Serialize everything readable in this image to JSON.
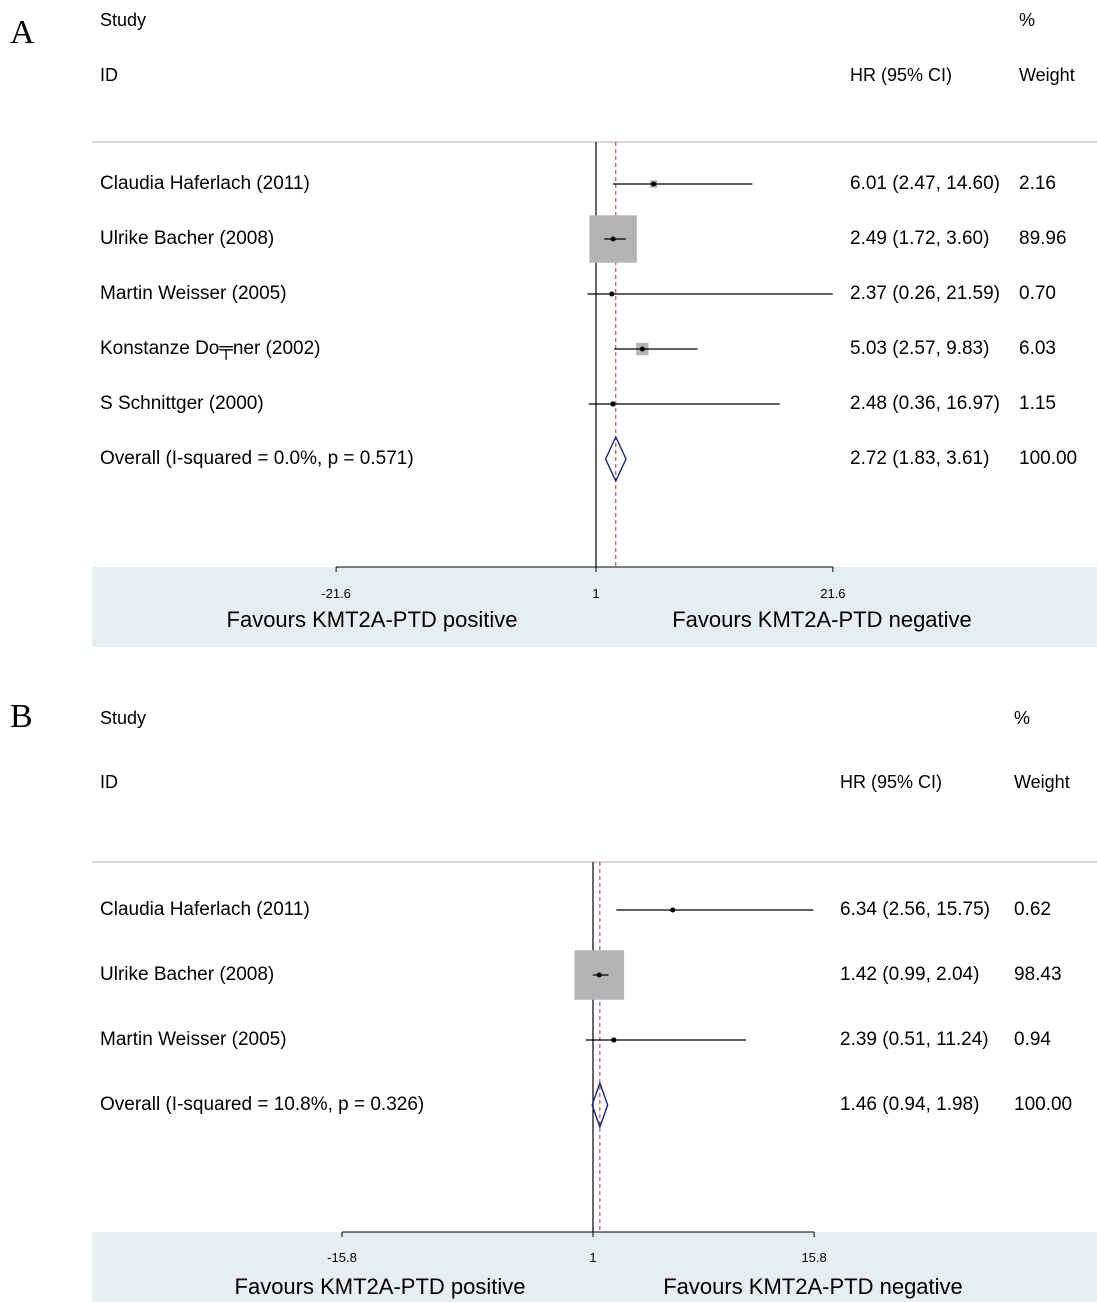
{
  "chart_data": [
    {
      "type": "forest",
      "panel": "A",
      "title": "",
      "col_study": "Study",
      "col_id": "ID",
      "col_effect": "HR (95% CI)",
      "col_pct": "%",
      "col_weight": "Weight",
      "ticks": [
        -21.6,
        1,
        21.6
      ],
      "tick_labels": [
        "-21.6",
        "1",
        "21.6"
      ],
      "null_value": 1,
      "overall_value": 2.72,
      "favours_left": "Favours KMT2A-PTD positive",
      "favours_right": "Favours KMT2A-PTD negative",
      "studies": [
        {
          "label": "Claudia Haferlach (2011)",
          "hr": 6.01,
          "lo": 2.47,
          "hi": 14.6,
          "ci_text": "6.01 (2.47, 14.60)",
          "weight": 2.16,
          "weight_text": "2.16"
        },
        {
          "label": "Ulrike Bacher (2008)",
          "hr": 2.49,
          "lo": 1.72,
          "hi": 3.6,
          "ci_text": "2.49 (1.72, 3.60)",
          "weight": 89.96,
          "weight_text": "89.96"
        },
        {
          "label": "Martin Weisser (2005)",
          "hr": 2.37,
          "lo": 0.26,
          "hi": 21.59,
          "ci_text": "2.37 (0.26, 21.59)",
          "weight": 0.7,
          "weight_text": "0.70"
        },
        {
          "label": "Konstanze Do╤ner (2002)",
          "hr": 5.03,
          "lo": 2.57,
          "hi": 9.83,
          "ci_text": "5.03 (2.57, 9.83)",
          "weight": 6.03,
          "weight_text": "6.03"
        },
        {
          "label": "S Schnittger (2000)",
          "hr": 2.48,
          "lo": 0.36,
          "hi": 16.97,
          "ci_text": "2.48 (0.36, 16.97)",
          "weight": 1.15,
          "weight_text": "1.15"
        }
      ],
      "overall": {
        "label": "Overall  (I-squared = 0.0%, p = 0.571)",
        "hr": 2.72,
        "lo": 1.83,
        "hi": 3.61,
        "ci_text": "2.72 (1.83, 3.61)",
        "weight_text": "100.00"
      }
    },
    {
      "type": "forest",
      "panel": "B",
      "title": "",
      "col_study": "Study",
      "col_id": "ID",
      "col_effect": "HR (95% CI)",
      "col_pct": "%",
      "col_weight": "Weight",
      "ticks": [
        -15.8,
        1,
        15.8
      ],
      "tick_labels": [
        "-15.8",
        "1",
        "15.8"
      ],
      "null_value": 1,
      "overall_value": 1.46,
      "favours_left": "Favours KMT2A-PTD positive",
      "favours_right": "Favours KMT2A-PTD negative",
      "studies": [
        {
          "label": "Claudia Haferlach (2011)",
          "hr": 6.34,
          "lo": 2.56,
          "hi": 15.75,
          "ci_text": "6.34 (2.56, 15.75)",
          "weight": 0.62,
          "weight_text": "0.62"
        },
        {
          "label": "Ulrike Bacher (2008)",
          "hr": 1.42,
          "lo": 0.99,
          "hi": 2.04,
          "ci_text": "1.42 (0.99, 2.04)",
          "weight": 98.43,
          "weight_text": "98.43"
        },
        {
          "label": "Martin Weisser (2005)",
          "hr": 2.39,
          "lo": 0.51,
          "hi": 11.24,
          "ci_text": "2.39 (0.51, 11.24)",
          "weight": 0.94,
          "weight_text": "0.94"
        }
      ],
      "overall": {
        "label": "Overall  (I-squared = 10.8%, p = 0.326)",
        "hr": 1.46,
        "lo": 0.94,
        "hi": 1.98,
        "ci_text": "1.46 (0.94, 1.98)",
        "weight_text": "100.00"
      }
    }
  ],
  "panels": {
    "A": {
      "letter": "A"
    },
    "B": {
      "letter": "B"
    }
  }
}
